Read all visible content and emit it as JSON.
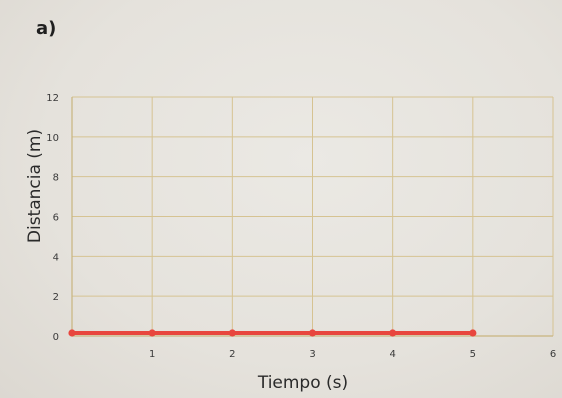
{
  "panel_label": "a)",
  "chart_data": {
    "type": "line",
    "xlabel": "Tiempo (s)",
    "ylabel": "Distancia (m)",
    "xlim": [
      0,
      6
    ],
    "ylim": [
      0,
      12
    ],
    "x_ticks": [
      1,
      2,
      3,
      4,
      5,
      6
    ],
    "y_ticks": [
      0,
      2,
      4,
      6,
      8,
      10,
      12
    ],
    "grid": true,
    "series": [
      {
        "x": [
          0,
          1,
          2,
          3,
          4,
          5
        ],
        "y": [
          0,
          0,
          0,
          0,
          0,
          0
        ],
        "color": "#e8463e"
      }
    ],
    "gridColor": "#d6c392",
    "axisColor": "#c9b57f",
    "markerColor": "#e8463e"
  }
}
